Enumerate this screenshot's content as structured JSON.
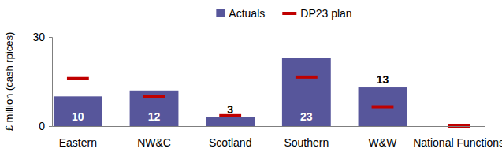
{
  "chart_data": {
    "type": "bar",
    "y_label": "£ million (cash rpices)",
    "categories": [
      "Eastern",
      "NW&C",
      "Scotland",
      "Southern",
      "W&W",
      "National Functions"
    ],
    "series": [
      {
        "name": "Actuals",
        "type": "bar",
        "color": "#57569b",
        "values": [
          10,
          12,
          3,
          23,
          13,
          0
        ],
        "value_labels": [
          "10",
          "12",
          "3",
          "23",
          "13",
          null
        ]
      },
      {
        "name": "DP23 plan",
        "type": "scatter",
        "marker": "dash",
        "color": "#c00000",
        "values": [
          16,
          10,
          3.5,
          16.5,
          6.5,
          0
        ]
      }
    ],
    "ylim": [
      0,
      30
    ],
    "yticks": [
      0,
      30
    ],
    "legend": "top",
    "data_labels": true,
    "grid": false
  }
}
